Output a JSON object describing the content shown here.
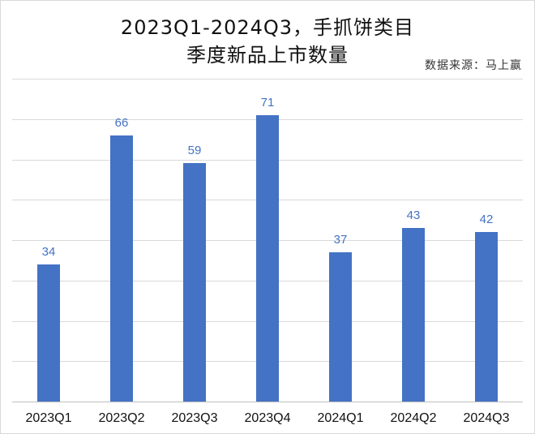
{
  "chart_data": {
    "type": "bar",
    "title": "2023Q1-2024Q3，手抓饼类目季度新品上市数量",
    "title_lines": [
      "2023Q1-2024Q3，手抓饼类目",
      "季度新品上市数量"
    ],
    "source": "数据来源：马上赢",
    "categories": [
      "2023Q1",
      "2023Q2",
      "2023Q3",
      "2023Q4",
      "2024Q1",
      "2024Q2",
      "2024Q3"
    ],
    "values": [
      34,
      66,
      59,
      71,
      37,
      43,
      42
    ],
    "xlabel": "",
    "ylabel": "",
    "ylim": [
      0,
      80
    ],
    "grid": true,
    "gridline_step": 10,
    "y_tick_labels_visible": false,
    "legend": null,
    "bar_color": "#4472c4",
    "data_labels": true
  }
}
